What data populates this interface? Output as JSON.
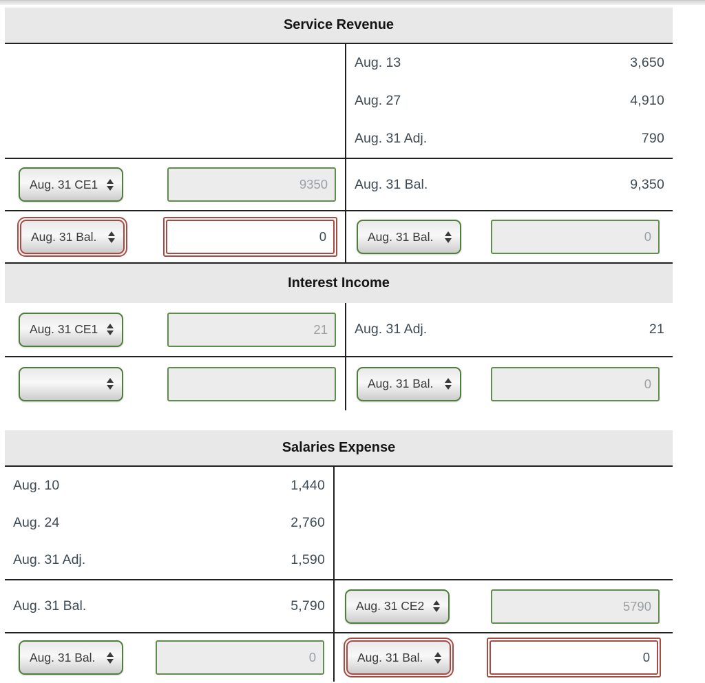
{
  "colors": {
    "accent_green": "#4f7d3c",
    "error_red": "#a94a42",
    "header_bg": "#e8e8e8",
    "rule": "#202020",
    "text": "#3e4a53"
  },
  "accounts": [
    {
      "title": "Service Revenue",
      "right_entries": [
        {
          "label": "Aug. 13",
          "value": "3,650"
        },
        {
          "label": "Aug. 27",
          "value": "4,910"
        },
        {
          "label": "Aug. 31 Adj.",
          "value": "790"
        }
      ],
      "ce_row": {
        "select": "Aug. 31 CE1",
        "input": "9350",
        "bal_label": "Aug. 31 Bal.",
        "bal_value": "9,350"
      },
      "bottom_left": {
        "select": "Aug. 31 Bal.",
        "input": "0"
      },
      "bottom_right": {
        "select": "Aug. 31 Bal.",
        "input": "0"
      }
    },
    {
      "title": "Interest Income",
      "ce_row": {
        "select": "Aug. 31 CE1",
        "input": "21",
        "adj_label": "Aug. 31 Adj.",
        "adj_value": "21"
      },
      "bottom_left": {
        "select": "",
        "input": ""
      },
      "bottom_right": {
        "select": "Aug. 31 Bal.",
        "input": "0"
      }
    },
    {
      "title": "Salaries Expense",
      "left_entries": [
        {
          "label": "Aug. 10",
          "value": "1,440"
        },
        {
          "label": "Aug. 24",
          "value": "2,760"
        },
        {
          "label": "Aug. 31 Adj.",
          "value": "1,590"
        }
      ],
      "bal_row": {
        "bal_label": "Aug. 31 Bal.",
        "bal_value": "5,790",
        "select": "Aug. 31 CE2",
        "input": "5790"
      },
      "bottom_left": {
        "select": "Aug. 31 Bal.",
        "input": "0"
      },
      "bottom_right": {
        "select": "Aug. 31 Bal.",
        "input": "0"
      }
    }
  ]
}
